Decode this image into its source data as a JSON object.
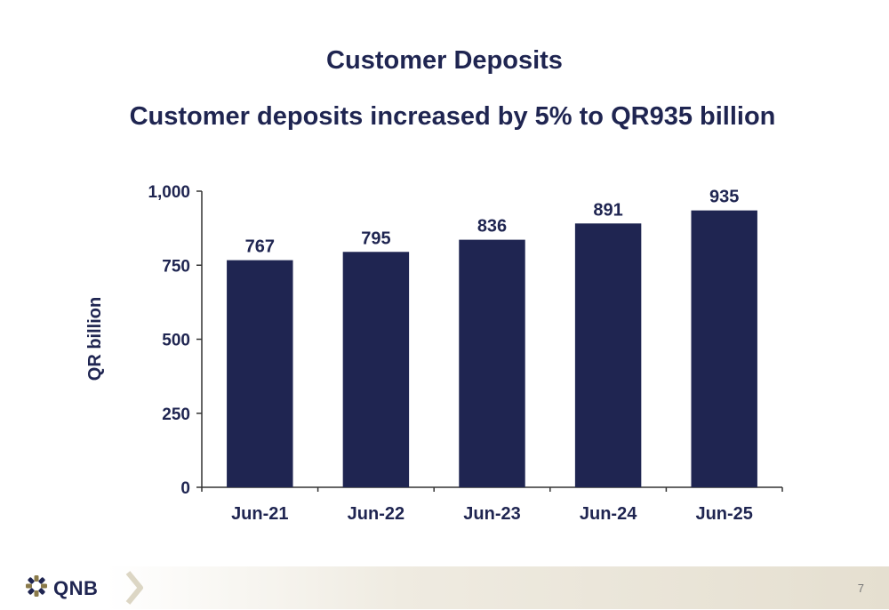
{
  "page": {
    "title": "Customer Deposits",
    "subtitle": "Customer deposits increased by 5% to QR935 billion",
    "page_number": "7"
  },
  "footer": {
    "logo_text": "QNB",
    "logo_icon": "qnb-star-icon",
    "divider_icon": "chevron-right-icon"
  },
  "colors": {
    "bar": "#1f2551",
    "text": "#1f2551",
    "axis": "#333333"
  },
  "chart_data": {
    "type": "bar",
    "categories": [
      "Jun-21",
      "Jun-22",
      "Jun-23",
      "Jun-24",
      "Jun-25"
    ],
    "values": [
      767,
      795,
      836,
      891,
      935
    ],
    "data_labels": [
      "767",
      "795",
      "836",
      "891",
      "935"
    ],
    "ylabel": "QR billion",
    "xlabel": "",
    "ylim": [
      0,
      1000
    ],
    "yticks": [
      0,
      250,
      500,
      750,
      1000
    ],
    "ytick_labels": [
      "0",
      "250",
      "500",
      "750",
      "1,000"
    ],
    "grid": false,
    "legend": "none"
  }
}
